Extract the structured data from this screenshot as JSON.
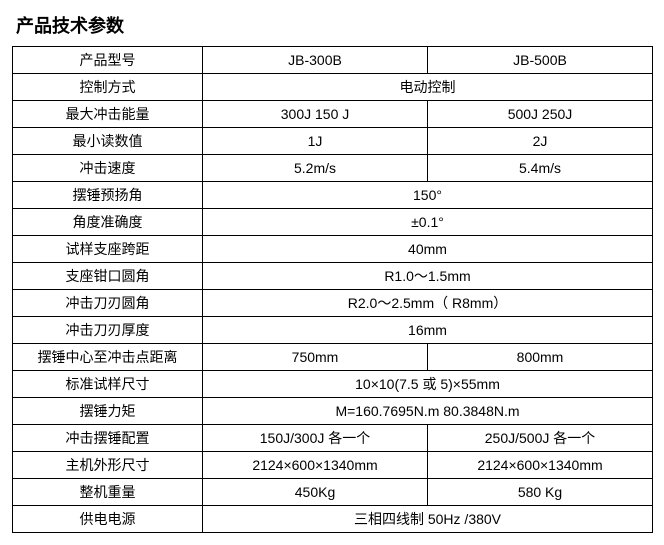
{
  "title": "产品技术参数",
  "table": {
    "rows": [
      {
        "label": "产品型号",
        "span": false,
        "v1": "JB-300B",
        "v2": "JB-500B"
      },
      {
        "label": "控制方式",
        "span": true,
        "v": "电动控制"
      },
      {
        "label": "最大冲击能量",
        "span": false,
        "v1": "300J 150 J",
        "v2": "500J 250J"
      },
      {
        "label": "最小读数值",
        "span": false,
        "v1": "1J",
        "v2": "2J"
      },
      {
        "label": "冲击速度",
        "span": false,
        "v1": "5.2m/s",
        "v2": "5.4m/s"
      },
      {
        "label": "摆锤预扬角",
        "span": true,
        "v": "150°"
      },
      {
        "label": "角度准确度",
        "span": true,
        "v": "±0.1°"
      },
      {
        "label": "试样支座跨距",
        "span": true,
        "v": "40mm"
      },
      {
        "label": "支座钳口圆角",
        "span": true,
        "v": "R1.0～1.5mm"
      },
      {
        "label": "冲击刀刃圆角",
        "span": true,
        "v": "R2.0～2.5mm（ R8mm）"
      },
      {
        "label": "冲击刀刃厚度",
        "span": true,
        "v": "16mm"
      },
      {
        "label": "摆锤中心至冲击点距离",
        "span": false,
        "v1": "750mm",
        "v2": "800mm"
      },
      {
        "label": "标准试样尺寸",
        "span": true,
        "v": "10×10(7.5 或 5)×55mm"
      },
      {
        "label": "摆锤力矩",
        "span": true,
        "v": "M=160.7695N.m    80.3848N.m"
      },
      {
        "label": "冲击摆锤配置",
        "span": false,
        "v1": "150J/300J 各一个",
        "v2": "250J/500J 各一个"
      },
      {
        "label": "主机外形尺寸",
        "span": false,
        "v1": "2124×600×1340mm",
        "v2": "2124×600×1340mm"
      },
      {
        "label": "整机重量",
        "span": false,
        "v1": "450Kg",
        "v2": "580 Kg"
      },
      {
        "label": "供电电源",
        "span": true,
        "v": "三相四线制 50Hz /380V"
      }
    ]
  }
}
